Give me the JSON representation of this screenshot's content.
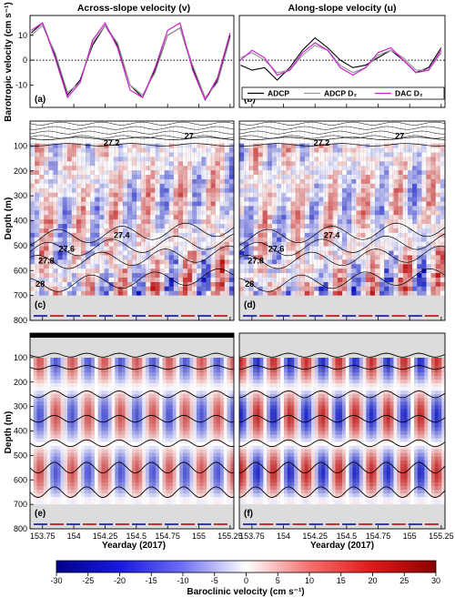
{
  "titles": {
    "left": "Across-slope velocity (v)",
    "right": "Along-slope velocity (u)"
  },
  "labels": {
    "barotropic_y": "Barotropic velocity (cm s⁻¹)",
    "depth_y_c": "Depth (m)",
    "depth_y_e": "Depth (m)",
    "xlabel_left": "Yearday (2017)",
    "xlabel_right": "Yearday (2017)",
    "colorbar": "Baroclinic velocity (cm s⁻¹)"
  },
  "panel_letters": [
    "(a)",
    "(b)",
    "(c)",
    "(d)",
    "(e)",
    "(f)"
  ],
  "legend": [
    "ADCP",
    "ADCP D₂",
    "DAC D₂"
  ],
  "x_ticks": [
    "153.75",
    "154",
    "154.25",
    "154.5",
    "154.75",
    "155",
    "155.25"
  ],
  "y_ticks_top": [
    "10",
    "0",
    "-10"
  ],
  "y_ticks_depth": [
    "100",
    "200",
    "300",
    "400",
    "500",
    "600",
    "700",
    "800"
  ],
  "colorbar_ticks": [
    "-30",
    "-25",
    "-20",
    "-15",
    "-10",
    "-5",
    "0",
    "5",
    "10",
    "15",
    "20",
    "25",
    "30"
  ],
  "isopycnal_labels": [
    "27",
    "27.2",
    "27.4",
    "27.6",
    "27.8",
    "28"
  ],
  "colors": {
    "adcp": "#000000",
    "adcp_d2": "#999999",
    "dac_d2": "#cc22cc",
    "negative": "#0000a0",
    "positive": "#b00000",
    "seafloor": "#dcdcdc"
  },
  "chart_data": [
    {
      "panel": "(a)",
      "type": "line",
      "title": "Across-slope velocity (v)",
      "ylabel": "Barotropic velocity (cm s⁻¹)",
      "xlim": [
        153.65,
        155.28
      ],
      "ylim": [
        -19,
        18
      ],
      "series": [
        {
          "name": "ADCP",
          "x": [
            153.66,
            153.75,
            153.85,
            153.95,
            154.05,
            154.15,
            154.25,
            154.35,
            154.45,
            154.55,
            154.65,
            154.75,
            154.85,
            154.95,
            155.05,
            155.15,
            155.25
          ],
          "y": [
            11,
            15,
            2,
            -14,
            -8,
            6,
            14,
            6,
            -10,
            -15,
            -4,
            10,
            13,
            -3,
            -16,
            -8,
            10
          ]
        },
        {
          "name": "ADCP D₂",
          "x": [
            153.66,
            153.75,
            153.85,
            153.95,
            154.05,
            154.15,
            154.25,
            154.35,
            154.45,
            154.55,
            154.65,
            154.75,
            154.85,
            154.95,
            155.05,
            155.15,
            155.25
          ],
          "y": [
            10,
            14,
            3,
            -13,
            -9,
            7,
            14,
            7,
            -10,
            -14,
            -5,
            10,
            13,
            -2,
            -15,
            -9,
            9
          ]
        },
        {
          "name": "DAC D₂",
          "x": [
            153.66,
            153.75,
            153.85,
            153.95,
            154.05,
            154.15,
            154.25,
            154.35,
            154.45,
            154.55,
            154.65,
            154.75,
            154.85,
            154.95,
            155.05,
            155.15,
            155.25
          ],
          "y": [
            12,
            15,
            1,
            -15,
            -9,
            8,
            15,
            5,
            -12,
            -15,
            -3,
            12,
            15,
            -4,
            -16,
            -7,
            11
          ]
        }
      ]
    },
    {
      "panel": "(b)",
      "type": "line",
      "title": "Along-slope velocity (u)",
      "xlim": [
        153.65,
        155.28
      ],
      "ylim": [
        -19,
        18
      ],
      "series": [
        {
          "name": "ADCP",
          "x": [
            153.66,
            153.75,
            153.85,
            153.95,
            154.05,
            154.15,
            154.25,
            154.35,
            154.45,
            154.55,
            154.65,
            154.75,
            154.85,
            154.95,
            155.05,
            155.15,
            155.25
          ],
          "y": [
            -2,
            -4,
            -3,
            -8,
            -3,
            4,
            9,
            5,
            0,
            -3,
            -2,
            1,
            4,
            0,
            -5,
            -3,
            5
          ]
        },
        {
          "name": "ADCP D₂",
          "x": [
            153.66,
            153.75,
            153.85,
            153.95,
            154.05,
            154.15,
            154.25,
            154.35,
            154.45,
            154.55,
            154.65,
            154.75,
            154.85,
            154.95,
            155.05,
            155.15,
            155.25
          ],
          "y": [
            1,
            3,
            0,
            -5,
            -4,
            2,
            6,
            4,
            -2,
            -5,
            -3,
            2,
            4,
            1,
            -4,
            -4,
            3
          ]
        },
        {
          "name": "DAC D₂",
          "x": [
            153.66,
            153.75,
            153.85,
            153.95,
            154.05,
            154.15,
            154.25,
            154.35,
            154.45,
            154.55,
            154.65,
            154.75,
            154.85,
            154.95,
            155.05,
            155.15,
            155.25
          ],
          "y": [
            0,
            4,
            1,
            -6,
            -4,
            3,
            7,
            4,
            -3,
            -6,
            -3,
            3,
            5,
            0,
            -5,
            -4,
            4
          ]
        }
      ]
    },
    {
      "panel": "(c)",
      "type": "heatmap",
      "ylabel": "Depth (m)",
      "xlim": [
        153.65,
        155.28
      ],
      "ylim": [
        800,
        0
      ],
      "colorbar": {
        "label": "Baroclinic velocity (cm s⁻¹)",
        "range": [
          -30,
          30
        ]
      },
      "isopycnals": [
        {
          "label": "27",
          "depth": 70
        },
        {
          "label": "27.2",
          "depth": 95
        },
        {
          "label": "27.4",
          "depth": 470
        },
        {
          "label": "27.6",
          "depth": 520
        },
        {
          "label": "27.8",
          "depth": 570
        },
        {
          "label": "28",
          "depth": 660
        }
      ]
    },
    {
      "panel": "(d)",
      "type": "heatmap",
      "xlim": [
        153.65,
        155.28
      ],
      "ylim": [
        800,
        0
      ],
      "isopycnals": [
        {
          "label": "27",
          "depth": 70
        },
        {
          "label": "27.2",
          "depth": 95
        },
        {
          "label": "27.4",
          "depth": 470
        },
        {
          "label": "27.6",
          "depth": 520
        },
        {
          "label": "27.8",
          "depth": 570
        },
        {
          "label": "28",
          "depth": 660
        }
      ]
    },
    {
      "panel": "(e)",
      "type": "heatmap",
      "ylabel": "Depth (m)",
      "xlabel": "Yearday (2017)",
      "xlim": [
        153.65,
        155.28
      ],
      "ylim": [
        800,
        0
      ],
      "mode_isopycnal_depths": [
        90,
        140,
        250,
        350,
        450,
        550,
        650
      ]
    },
    {
      "panel": "(f)",
      "type": "heatmap",
      "xlabel": "Yearday (2017)",
      "xlim": [
        153.65,
        155.28
      ],
      "ylim": [
        800,
        0
      ],
      "mode_isopycnal_depths": [
        90,
        140,
        250,
        350,
        450,
        550,
        650
      ]
    }
  ]
}
